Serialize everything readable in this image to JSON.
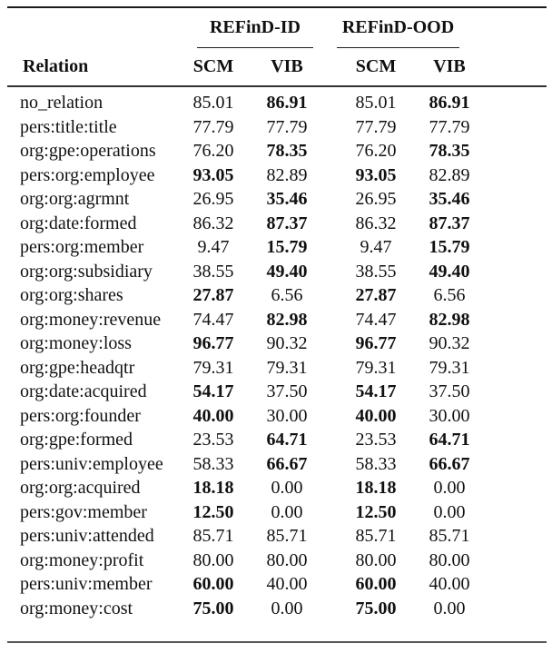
{
  "table": {
    "header": {
      "relation_label": "Relation",
      "groups": [
        {
          "label": "REFinD-ID",
          "columns": [
            "SCM",
            "VIB"
          ]
        },
        {
          "label": "REFinD-OOD",
          "columns": [
            "SCM",
            "VIB"
          ]
        }
      ]
    },
    "rows": [
      {
        "relation": "no_relation",
        "values": [
          "85.01",
          "86.91",
          "85.01",
          "86.91"
        ],
        "bold": [
          false,
          true,
          false,
          true
        ]
      },
      {
        "relation": "pers:title:title",
        "values": [
          "77.79",
          "77.79",
          "77.79",
          "77.79"
        ],
        "bold": [
          false,
          false,
          false,
          false
        ]
      },
      {
        "relation": "org:gpe:operations",
        "values": [
          "76.20",
          "78.35",
          "76.20",
          "78.35"
        ],
        "bold": [
          false,
          true,
          false,
          true
        ]
      },
      {
        "relation": "pers:org:employee",
        "values": [
          "93.05",
          "82.89",
          "93.05",
          "82.89"
        ],
        "bold": [
          true,
          false,
          true,
          false
        ]
      },
      {
        "relation": "org:org:agrmnt",
        "values": [
          "26.95",
          "35.46",
          "26.95",
          "35.46"
        ],
        "bold": [
          false,
          true,
          false,
          true
        ]
      },
      {
        "relation": "org:date:formed",
        "values": [
          "86.32",
          "87.37",
          "86.32",
          "87.37"
        ],
        "bold": [
          false,
          true,
          false,
          true
        ]
      },
      {
        "relation": "pers:org:member",
        "values": [
          "9.47",
          "15.79",
          "9.47",
          "15.79"
        ],
        "bold": [
          false,
          true,
          false,
          true
        ]
      },
      {
        "relation": "org:org:subsidiary",
        "values": [
          "38.55",
          "49.40",
          "38.55",
          "49.40"
        ],
        "bold": [
          false,
          true,
          false,
          true
        ]
      },
      {
        "relation": "org:org:shares",
        "values": [
          "27.87",
          "6.56",
          "27.87",
          "6.56"
        ],
        "bold": [
          true,
          false,
          true,
          false
        ]
      },
      {
        "relation": "org:money:revenue",
        "values": [
          "74.47",
          "82.98",
          "74.47",
          "82.98"
        ],
        "bold": [
          false,
          true,
          false,
          true
        ]
      },
      {
        "relation": "org:money:loss",
        "values": [
          "96.77",
          "90.32",
          "96.77",
          "90.32"
        ],
        "bold": [
          true,
          false,
          true,
          false
        ]
      },
      {
        "relation": "org:gpe:headqtr",
        "values": [
          "79.31",
          "79.31",
          "79.31",
          "79.31"
        ],
        "bold": [
          false,
          false,
          false,
          false
        ]
      },
      {
        "relation": "org:date:acquired",
        "values": [
          "54.17",
          "37.50",
          "54.17",
          "37.50"
        ],
        "bold": [
          true,
          false,
          true,
          false
        ]
      },
      {
        "relation": "pers:org:founder",
        "values": [
          "40.00",
          "30.00",
          "40.00",
          "30.00"
        ],
        "bold": [
          true,
          false,
          true,
          false
        ]
      },
      {
        "relation": "org:gpe:formed",
        "values": [
          "23.53",
          "64.71",
          "23.53",
          "64.71"
        ],
        "bold": [
          false,
          true,
          false,
          true
        ]
      },
      {
        "relation": "pers:univ:employee",
        "values": [
          "58.33",
          "66.67",
          "58.33",
          "66.67"
        ],
        "bold": [
          false,
          true,
          false,
          true
        ]
      },
      {
        "relation": "org:org:acquired",
        "values": [
          "18.18",
          "0.00",
          "18.18",
          "0.00"
        ],
        "bold": [
          true,
          false,
          true,
          false
        ]
      },
      {
        "relation": "pers:gov:member",
        "values": [
          "12.50",
          "0.00",
          "12.50",
          "0.00"
        ],
        "bold": [
          true,
          false,
          true,
          false
        ]
      },
      {
        "relation": "pers:univ:attended",
        "values": [
          "85.71",
          "85.71",
          "85.71",
          "85.71"
        ],
        "bold": [
          false,
          false,
          false,
          false
        ]
      },
      {
        "relation": "org:money:profit",
        "values": [
          "80.00",
          "80.00",
          "80.00",
          "80.00"
        ],
        "bold": [
          false,
          false,
          false,
          false
        ]
      },
      {
        "relation": "pers:univ:member",
        "values": [
          "60.00",
          "40.00",
          "60.00",
          "40.00"
        ],
        "bold": [
          true,
          false,
          true,
          false
        ]
      },
      {
        "relation": "org:money:cost",
        "values": [
          "75.00",
          "0.00",
          "75.00",
          "0.00"
        ],
        "bold": [
          true,
          false,
          true,
          false
        ]
      }
    ]
  }
}
